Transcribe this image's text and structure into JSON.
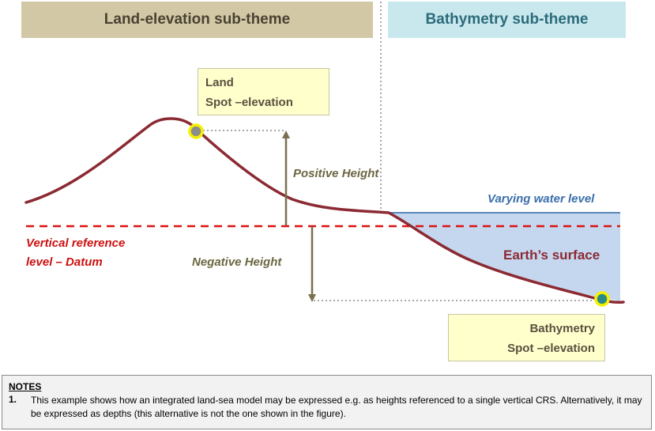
{
  "headers": {
    "land": "Land-elevation sub-theme",
    "bathymetry": "Bathymetry sub-theme"
  },
  "callouts": {
    "land": {
      "line1": "Land",
      "line2": "Spot –elevation"
    },
    "bathymetry": {
      "line1": "Bathymetry",
      "line2": "Spot –elevation"
    }
  },
  "labels": {
    "positive_height": "Positive Height",
    "negative_height": "Negative Height",
    "varying_water": "Varying water level",
    "datum_line1": "Vertical reference",
    "datum_line2": "level – Datum",
    "earth_surface": "Earth’s surface"
  },
  "notes": {
    "title": "NOTES",
    "number": "1.",
    "text": "This example shows how an integrated land-sea model may be expressed e.g. as heights referenced to a single vertical CRS. Alternatively, it may be expressed as depths (this alternative is not the one shown in the figure)."
  },
  "colors": {
    "terrain": "#8b2a33",
    "datum": "#dd1111",
    "water_fill": "#c5d7ee",
    "water_line": "#5b86b8",
    "arrow": "#7a7050",
    "spot_fill_land": "#8c8c8c",
    "spot_fill_bathy": "#2a8a88",
    "spot_ring": "#f5f000"
  }
}
